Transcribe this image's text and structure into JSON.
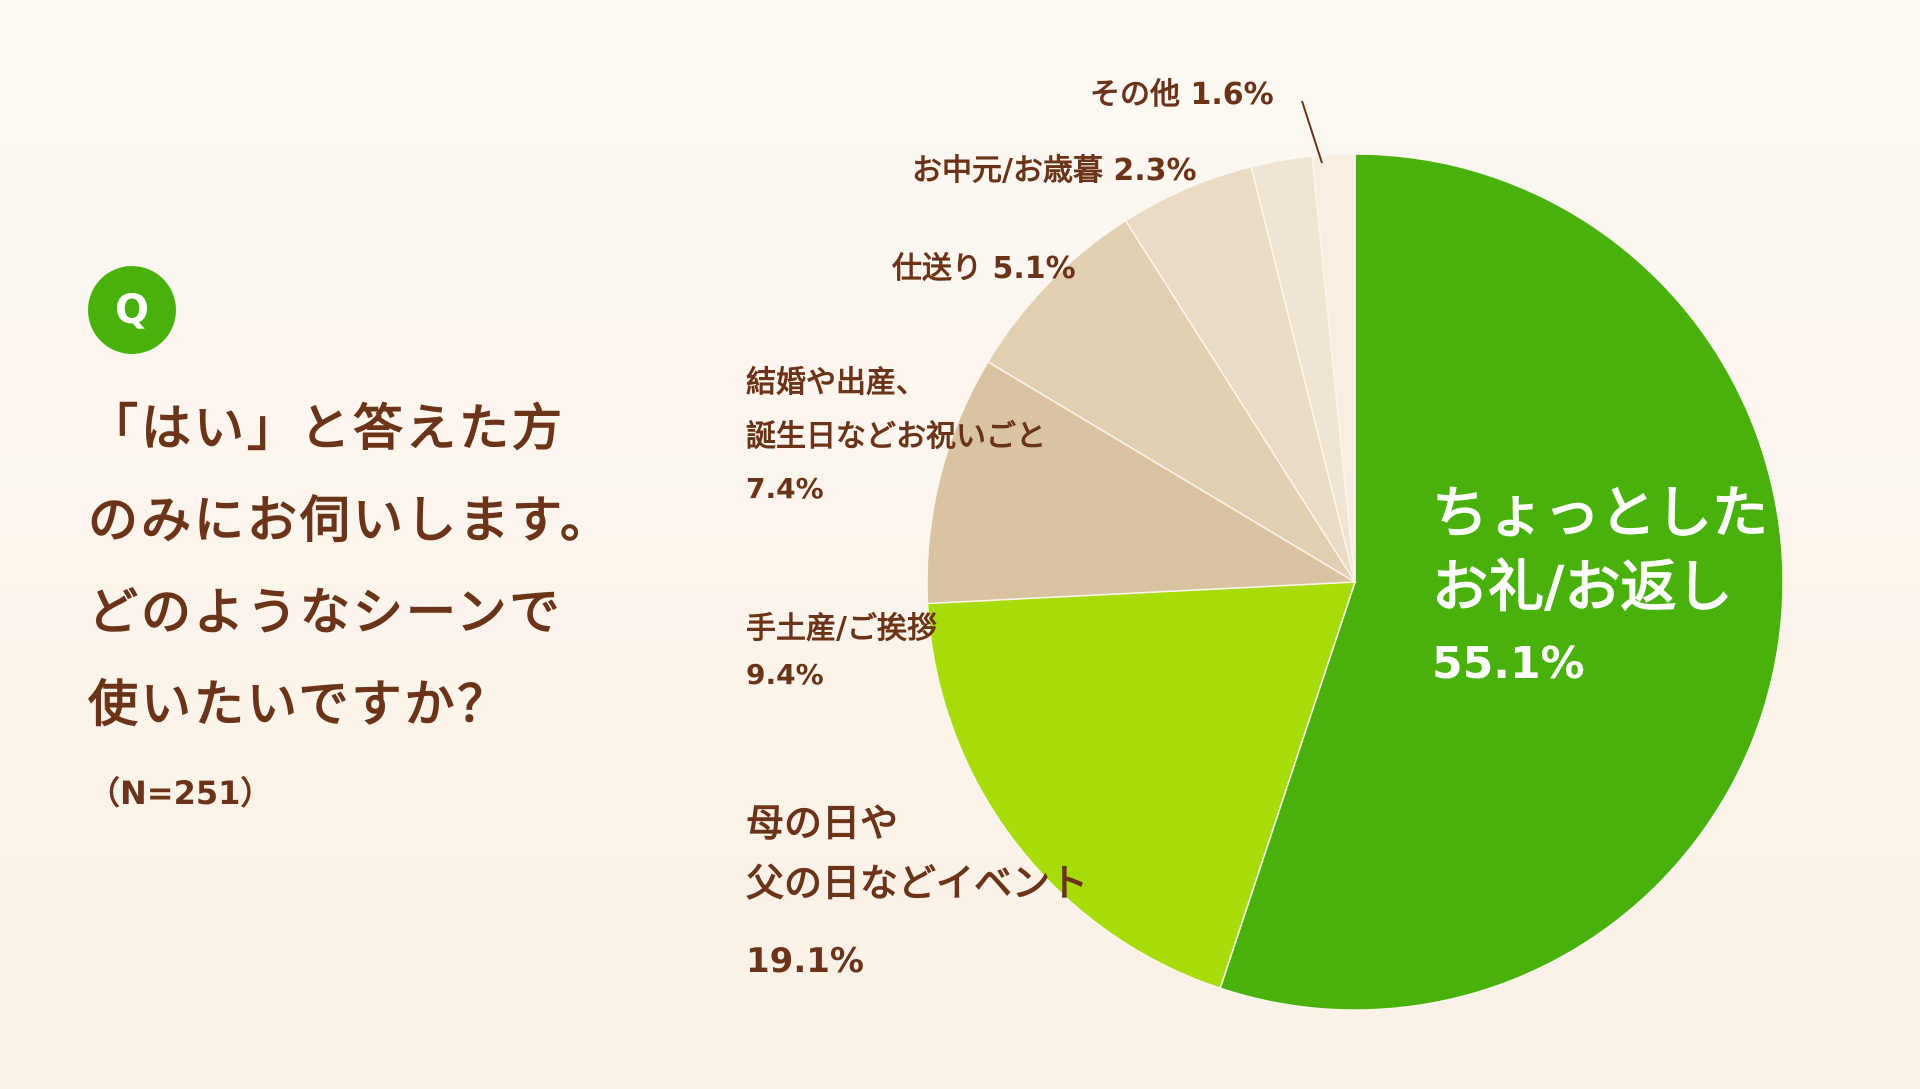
{
  "question": {
    "badge": "Q",
    "lines": [
      "「はい」と答えた方",
      "のみにお伺いします。",
      "どのようなシーンで",
      "使いたいですか？"
    ],
    "sample": "（N=251）"
  },
  "chart_data": {
    "type": "pie",
    "title": "",
    "sample_size": "N=251",
    "slices": [
      {
        "label_lines": [
          "ちょっとした",
          "お礼/お返し"
        ],
        "value": 55.1,
        "value_label": "55.1%",
        "color": "#49b10b"
      },
      {
        "label_lines": [
          "母の日や",
          "父の日などイベント"
        ],
        "value": 19.1,
        "value_label": "19.1%",
        "color": "#a8db0a"
      },
      {
        "label_lines": [
          "手土産/ご挨拶"
        ],
        "value": 9.4,
        "value_label": "9.4%",
        "color": "#d9c3a0"
      },
      {
        "label_lines": [
          "結婚や出産、",
          "誕生日などお祝いごと"
        ],
        "value": 7.4,
        "value_label": "7.4%",
        "color": "#e2cfb2"
      },
      {
        "label_lines": [
          "仕送り 5.1%"
        ],
        "value": 5.1,
        "value_label": "",
        "color": "#eadcc4"
      },
      {
        "label_lines": [
          "お中元/お歳暮 2.3%"
        ],
        "value": 2.3,
        "value_label": "",
        "color": "#f0e5d3"
      },
      {
        "label_lines": [
          "その他 1.6%"
        ],
        "value": 1.6,
        "value_label": "",
        "color": "#f8efe2"
      }
    ]
  }
}
